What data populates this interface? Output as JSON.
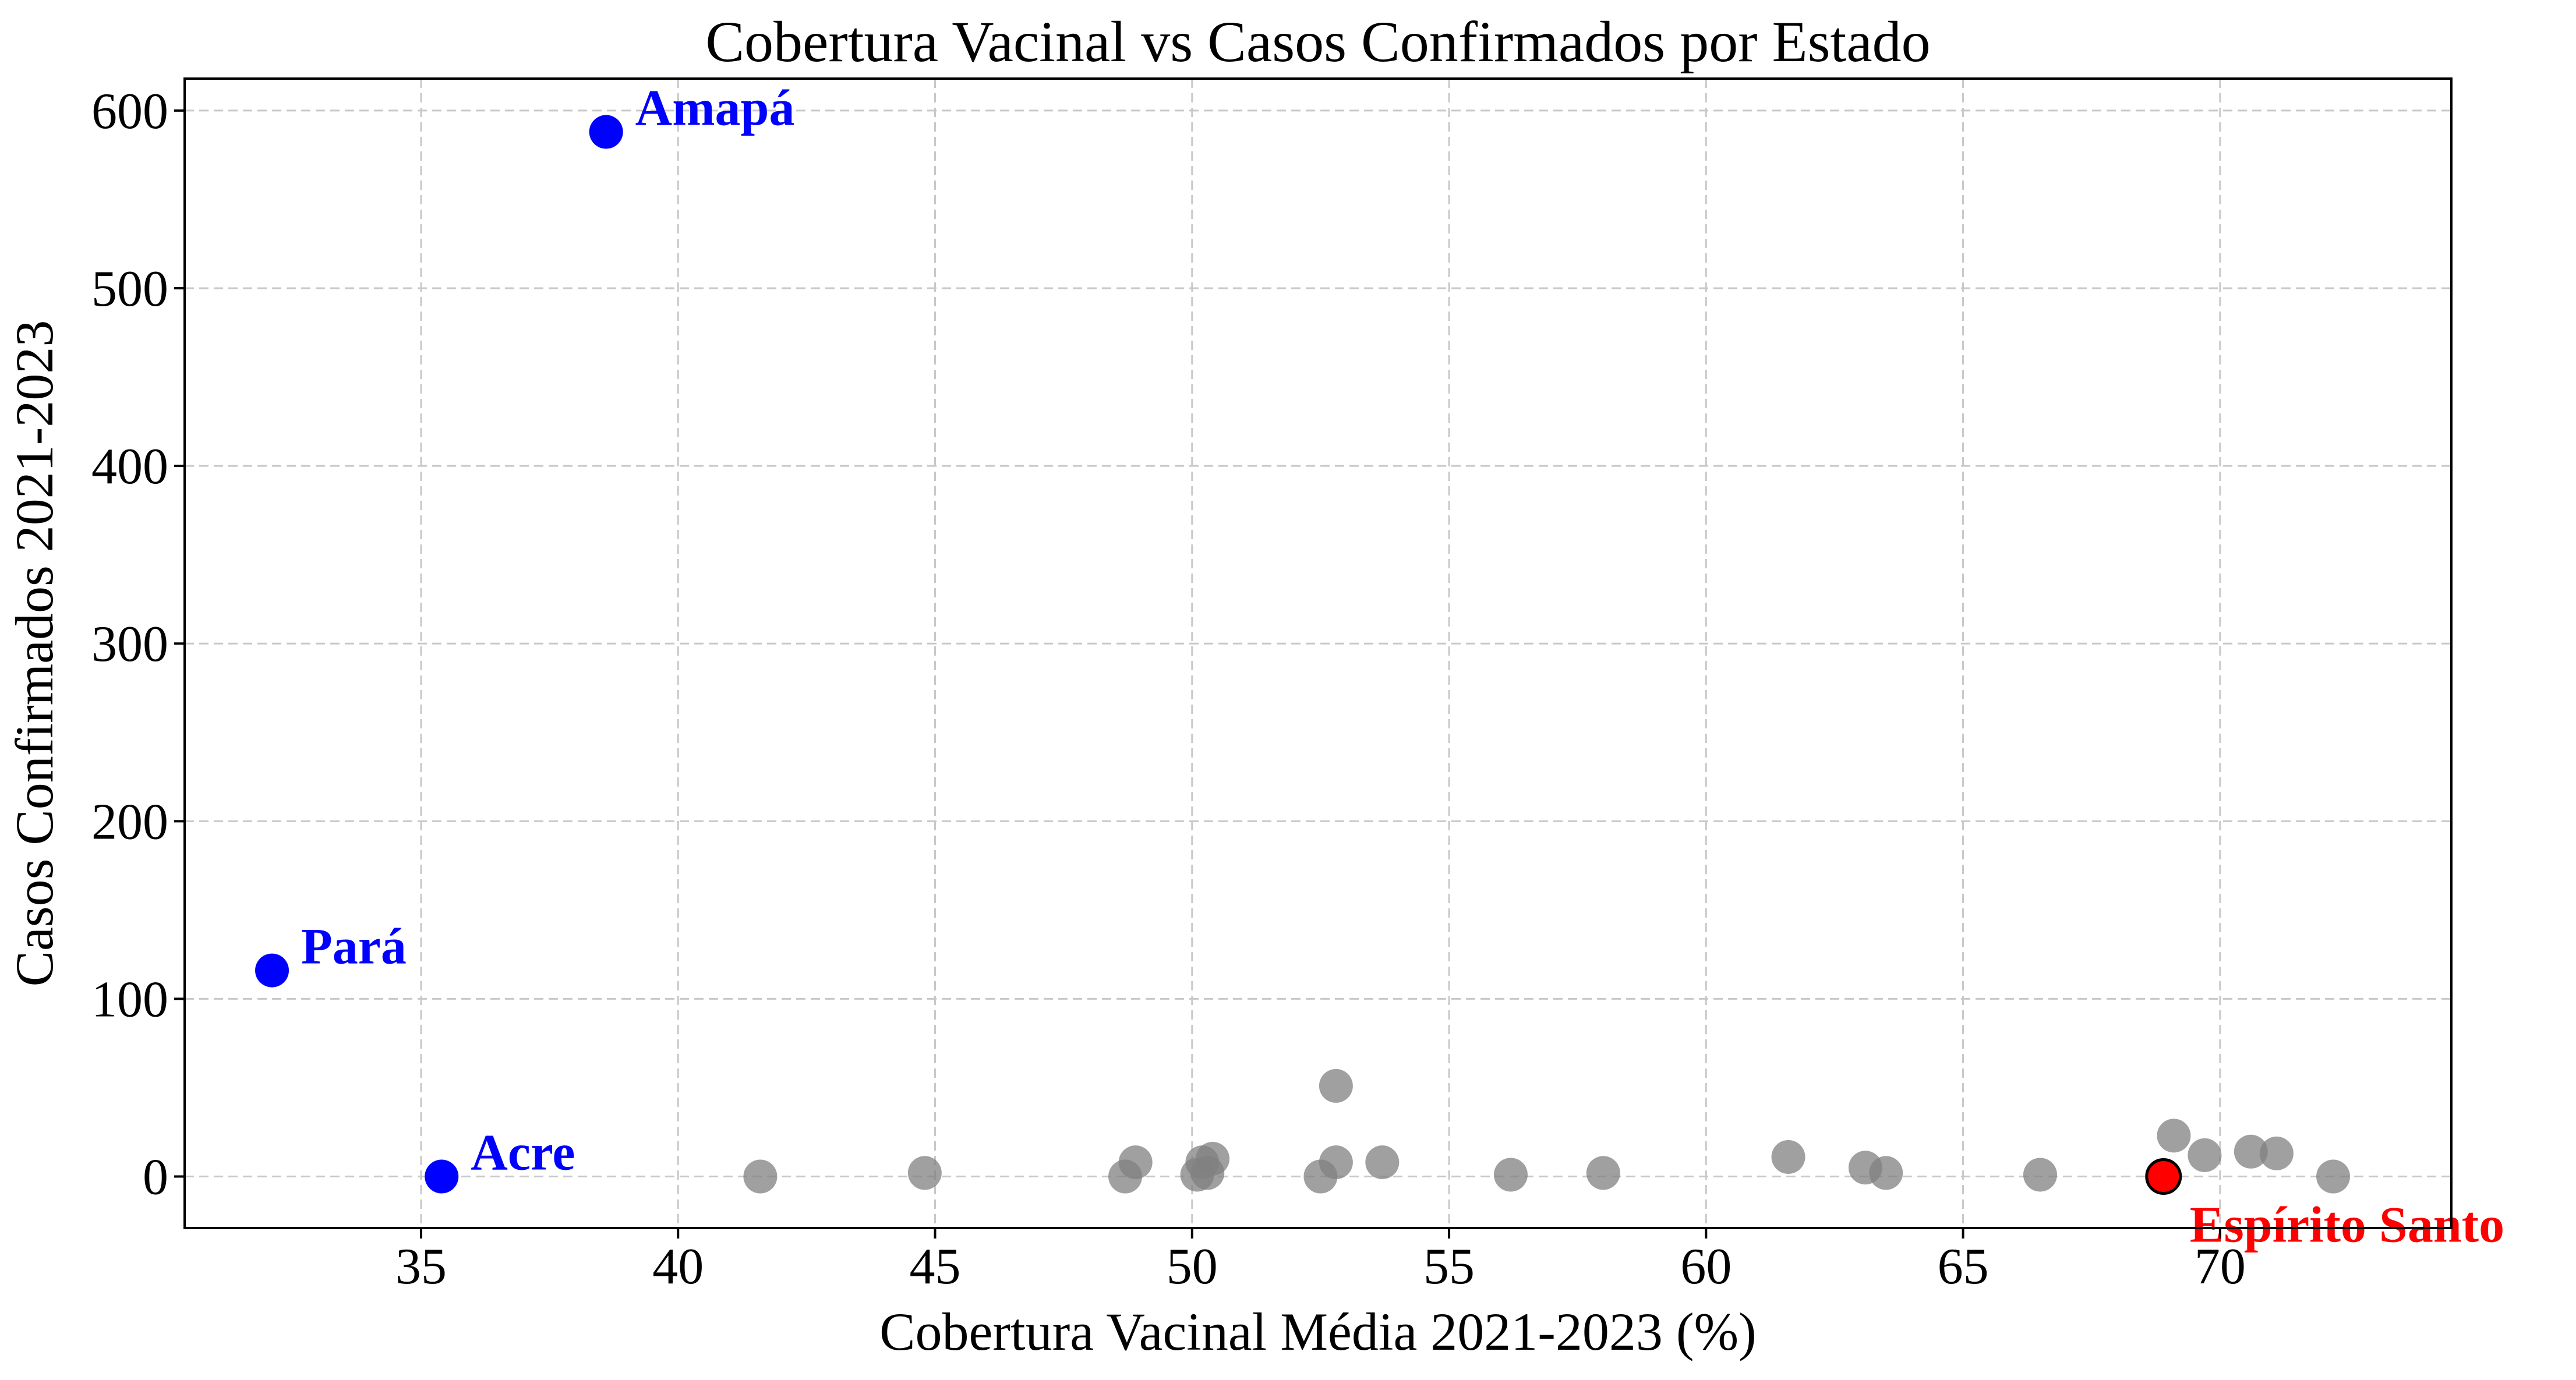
{
  "chart_data": {
    "type": "scatter",
    "title": "Cobertura Vacinal vs Casos Confirmados por Estado",
    "xlabel": "Cobertura Vacinal Média 2021-2023 (%)",
    "ylabel": "Casos Confirmados 2021-2023",
    "xlim": [
      30.4,
      74.5
    ],
    "ylim": [
      -29,
      618
    ],
    "xticks": [
      35,
      40,
      45,
      50,
      55,
      60,
      65,
      70
    ],
    "yticks": [
      0,
      100,
      200,
      300,
      400,
      500,
      600
    ],
    "grid": true,
    "colors": {
      "other": "#808080",
      "highlight_blue": "#0000ff",
      "highlight_red": "#ff0000"
    },
    "points": [
      {
        "x": 38.6,
        "y": 588,
        "color": "#0000ff",
        "label": "Amapá"
      },
      {
        "x": 32.1,
        "y": 116,
        "color": "#0000ff",
        "label": "Pará"
      },
      {
        "x": 35.4,
        "y": 0,
        "color": "#0000ff",
        "label": "Acre"
      },
      {
        "x": 68.9,
        "y": 0,
        "color": "#ff0000",
        "label": "Espírito Santo"
      },
      {
        "x": 41.6,
        "y": 0,
        "color": "#808080"
      },
      {
        "x": 44.8,
        "y": 2,
        "color": "#808080"
      },
      {
        "x": 48.7,
        "y": 0,
        "color": "#808080"
      },
      {
        "x": 48.9,
        "y": 8,
        "color": "#808080"
      },
      {
        "x": 50.1,
        "y": 1,
        "color": "#808080"
      },
      {
        "x": 50.2,
        "y": 8,
        "color": "#808080"
      },
      {
        "x": 50.3,
        "y": 2,
        "color": "#808080"
      },
      {
        "x": 50.4,
        "y": 10,
        "color": "#808080"
      },
      {
        "x": 52.5,
        "y": 0,
        "color": "#808080"
      },
      {
        "x": 52.8,
        "y": 51,
        "color": "#808080"
      },
      {
        "x": 52.8,
        "y": 8,
        "color": "#808080"
      },
      {
        "x": 53.7,
        "y": 8,
        "color": "#808080"
      },
      {
        "x": 56.2,
        "y": 1,
        "color": "#808080"
      },
      {
        "x": 58.0,
        "y": 2,
        "color": "#808080"
      },
      {
        "x": 61.6,
        "y": 11,
        "color": "#808080"
      },
      {
        "x": 63.1,
        "y": 5,
        "color": "#808080"
      },
      {
        "x": 63.5,
        "y": 2,
        "color": "#808080"
      },
      {
        "x": 66.5,
        "y": 1,
        "color": "#808080"
      },
      {
        "x": 69.1,
        "y": 23,
        "color": "#808080"
      },
      {
        "x": 69.7,
        "y": 12,
        "color": "#808080"
      },
      {
        "x": 70.6,
        "y": 14,
        "color": "#808080"
      },
      {
        "x": 71.1,
        "y": 13,
        "color": "#808080"
      },
      {
        "x": 72.2,
        "y": 0,
        "color": "#808080"
      }
    ]
  }
}
